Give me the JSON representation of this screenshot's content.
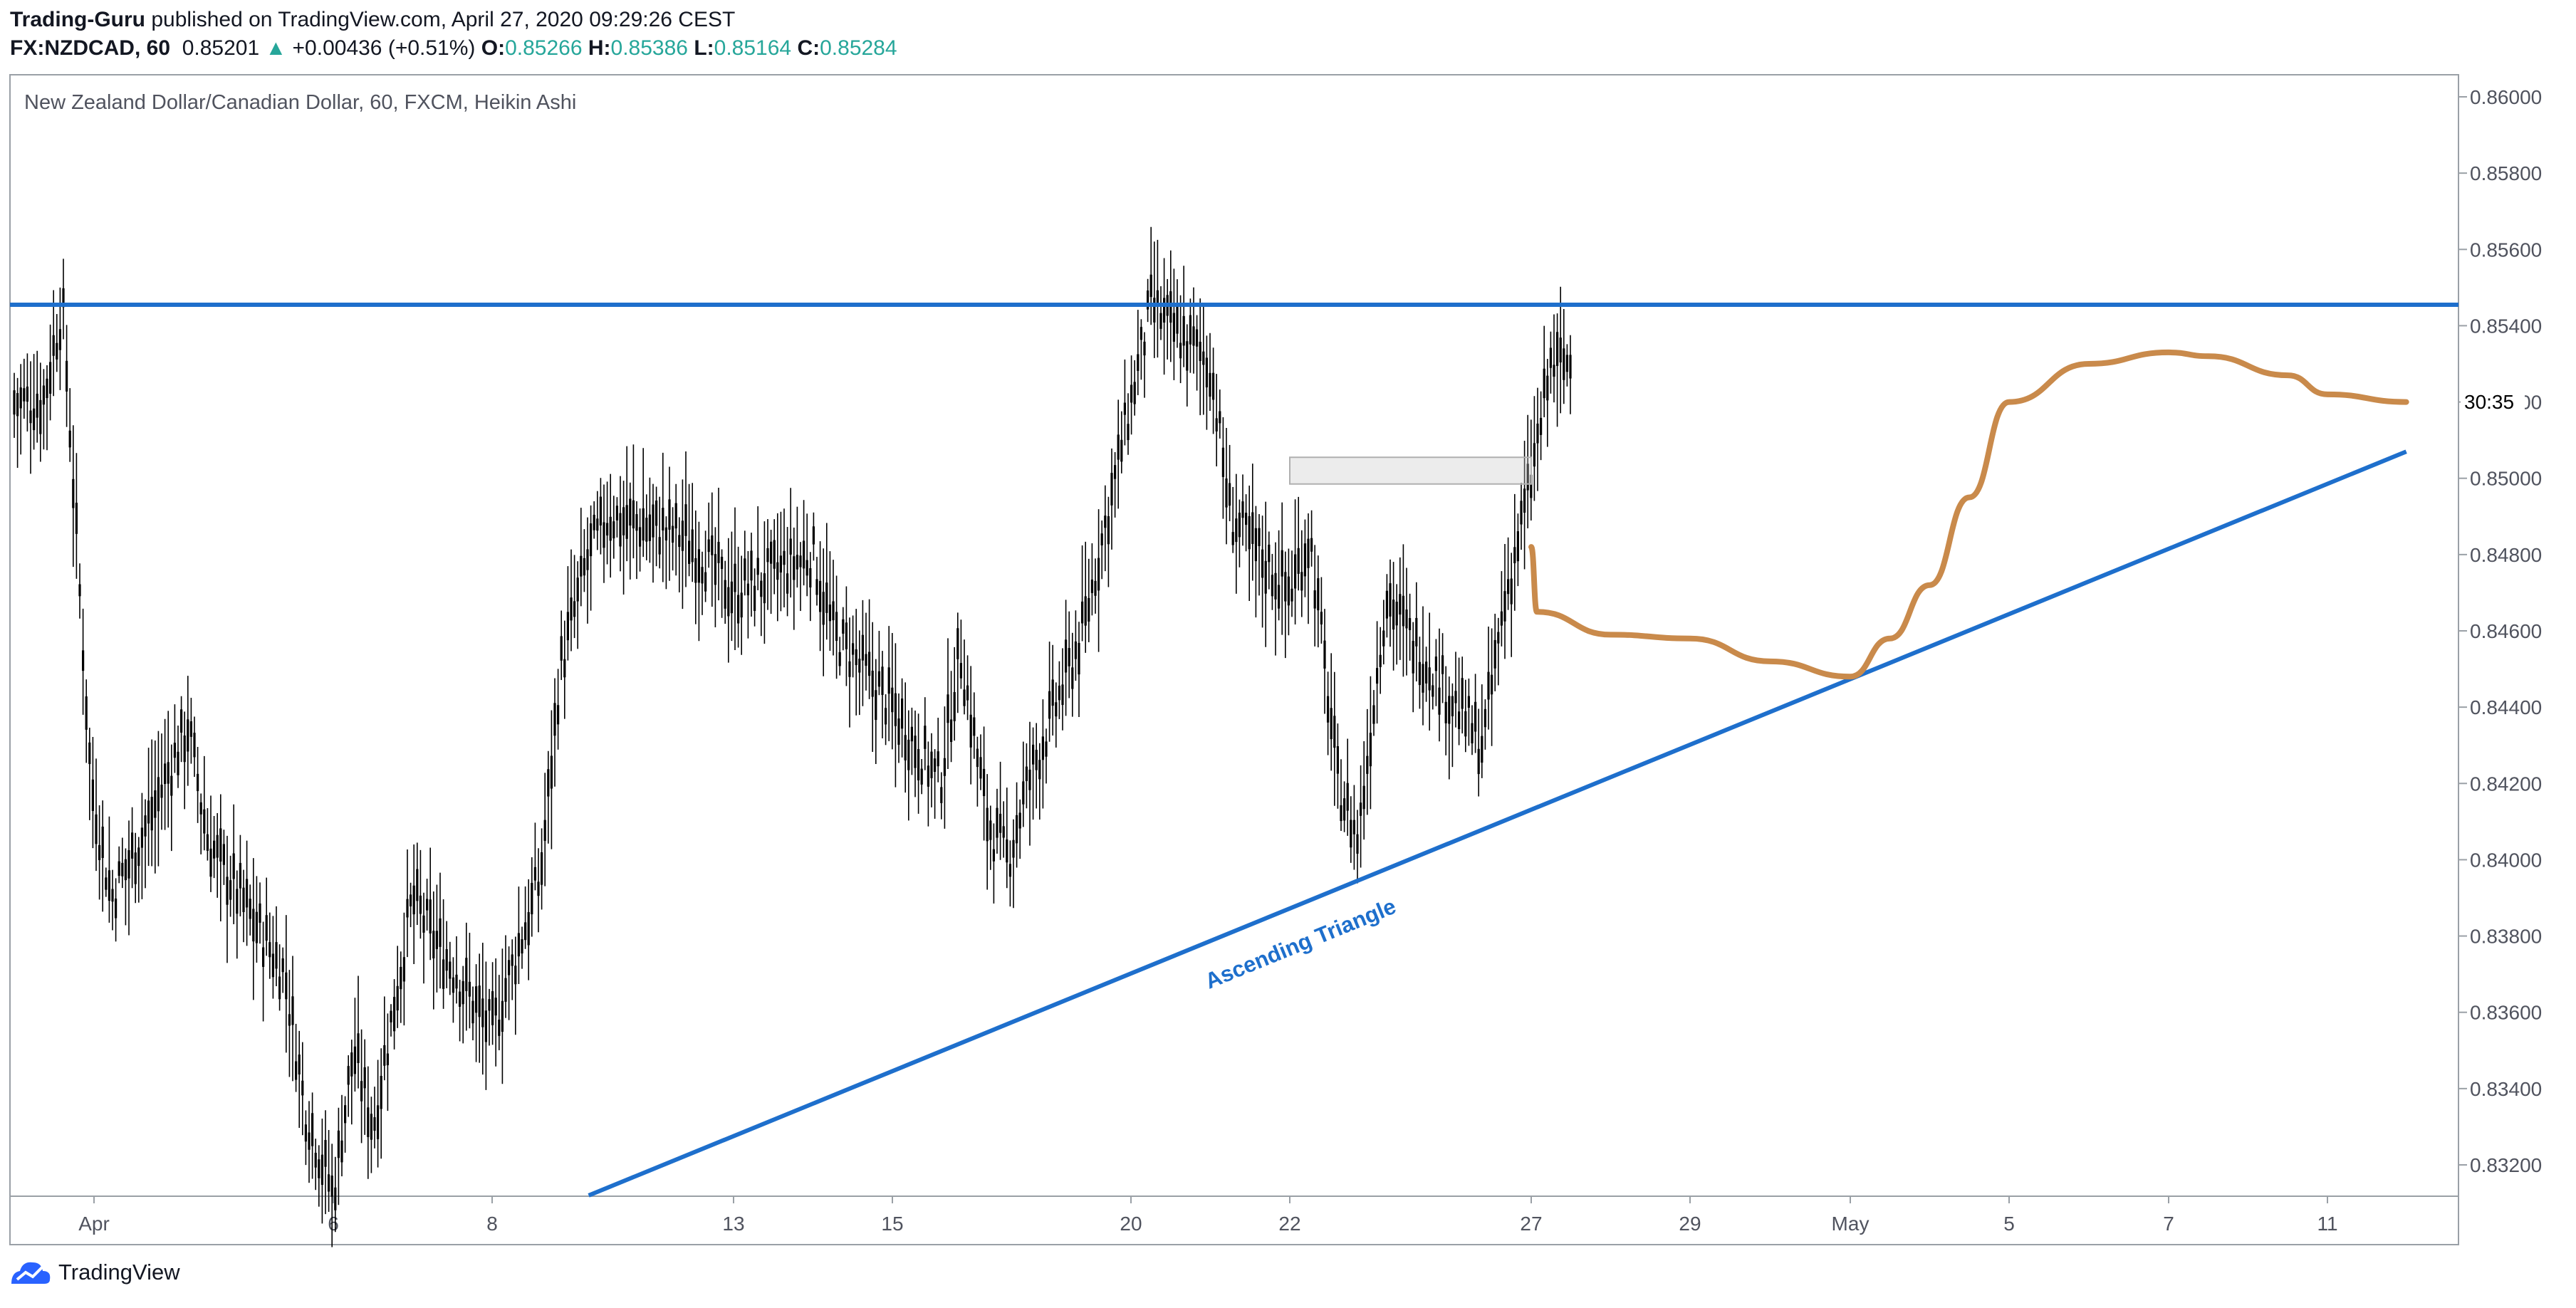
{
  "header": {
    "author": "Trading-Guru",
    "published_text": "published on TradingView.com, April 27, 2020 09:29:26 CEST",
    "symbol": "FX:NZDCAD, 60",
    "last_price": "0.85201",
    "change_arrow": "▲",
    "change": "+0.00436 (+0.51%)",
    "o_label": "O:",
    "o_value": "0.85266",
    "h_label": "H:",
    "h_value": "0.85386",
    "l_label": "L:",
    "l_value": "0.85164",
    "c_label": "C:",
    "c_value": "0.85284"
  },
  "footer": {
    "brand": "TradingView"
  },
  "colors": {
    "trendline": "#1e6fcc",
    "projection": "#c98a4b",
    "candle": "#000000",
    "positive": "#26a69a"
  },
  "chart_data": {
    "type": "candlestick",
    "chart_style": "Heikin Ashi",
    "title": "New Zealand Dollar/Canadian Dollar, 60, FXCM, Heikin Ashi",
    "x_ticks": [
      "Apr",
      "6",
      "8",
      "13",
      "15",
      "20",
      "22",
      "27",
      "29",
      "May",
      "5",
      "7",
      "11"
    ],
    "y_ticks": [
      "0.86000",
      "0.85800",
      "0.85600",
      "0.85400",
      "0.85200",
      "0.85000",
      "0.84800",
      "0.84600",
      "0.84400",
      "0.84200",
      "0.84000",
      "0.83800",
      "0.83600",
      "0.83400",
      "0.83200"
    ],
    "ylim": [
      0.8312,
      0.8605
    ],
    "countdown_label": "30:35",
    "countdown_price": 0.85201,
    "resistance_level": 0.85455,
    "support_trendline": {
      "from": {
        "date": "Apr 10",
        "price": 0.8312
      },
      "to": {
        "date": "May 12",
        "price": 0.8507
      }
    },
    "annotation": "Ascending Triangle",
    "consolidation_box": {
      "from": "Apr 22",
      "to": "Apr 27",
      "price_range": [
        0.84985,
        0.85055
      ]
    },
    "projection_path": [
      {
        "date": "Apr 27",
        "price": 0.8482
      },
      {
        "date": "Apr 27",
        "price": 0.8465
      },
      {
        "date": "Apr 28",
        "price": 0.8459
      },
      {
        "date": "Apr 29",
        "price": 0.8458
      },
      {
        "date": "Apr 30",
        "price": 0.8452
      },
      {
        "date": "May 1",
        "price": 0.8448
      },
      {
        "date": "May 2",
        "price": 0.8458
      },
      {
        "date": "May 3",
        "price": 0.8472
      },
      {
        "date": "May 4",
        "price": 0.8495
      },
      {
        "date": "May 5",
        "price": 0.852
      },
      {
        "date": "May 6",
        "price": 0.853
      },
      {
        "date": "May 7",
        "price": 0.8533
      },
      {
        "date": "May 8",
        "price": 0.8532
      },
      {
        "date": "May 10",
        "price": 0.8527
      },
      {
        "date": "May 11",
        "price": 0.8522
      },
      {
        "date": "May 12",
        "price": 0.852
      }
    ],
    "price_path": [
      {
        "date": "Mar 31",
        "price": 0.852
      },
      {
        "date": "Mar 31",
        "price": 0.8545
      },
      {
        "date": "Apr 1",
        "price": 0.842
      },
      {
        "date": "Apr 1",
        "price": 0.839
      },
      {
        "date": "Apr 2",
        "price": 0.8405
      },
      {
        "date": "Apr 3",
        "price": 0.8435
      },
      {
        "date": "Apr 3",
        "price": 0.8405
      },
      {
        "date": "Apr 5",
        "price": 0.837
      },
      {
        "date": "Apr 5",
        "price": 0.8335
      },
      {
        "date": "Apr 6",
        "price": 0.8312
      },
      {
        "date": "Apr 6",
        "price": 0.835
      },
      {
        "date": "Apr 6",
        "price": 0.833
      },
      {
        "date": "Apr 7",
        "price": 0.839
      },
      {
        "date": "Apr 7",
        "price": 0.838
      },
      {
        "date": "Apr 8",
        "price": 0.8355
      },
      {
        "date": "Apr 9",
        "price": 0.8395
      },
      {
        "date": "Apr 9",
        "price": 0.845
      },
      {
        "date": "Apr 10",
        "price": 0.848
      },
      {
        "date": "Apr 10",
        "price": 0.849
      },
      {
        "date": "Apr 12",
        "price": 0.8485
      },
      {
        "date": "Apr 13",
        "price": 0.847
      },
      {
        "date": "Apr 14",
        "price": 0.848
      },
      {
        "date": "Apr 14",
        "price": 0.846
      },
      {
        "date": "Apr 15",
        "price": 0.844
      },
      {
        "date": "Apr 16",
        "price": 0.842
      },
      {
        "date": "Apr 16",
        "price": 0.8455
      },
      {
        "date": "Apr 17",
        "price": 0.841
      },
      {
        "date": "Apr 17",
        "price": 0.84
      },
      {
        "date": "Apr 17",
        "price": 0.842
      },
      {
        "date": "Apr 19",
        "price": 0.846
      },
      {
        "date": "Apr 20",
        "price": 0.852
      },
      {
        "date": "Apr 20",
        "price": 0.8545
      },
      {
        "date": "Apr 21",
        "price": 0.853
      },
      {
        "date": "Apr 21",
        "price": 0.849
      },
      {
        "date": "Apr 22",
        "price": 0.847
      },
      {
        "date": "Apr 22",
        "price": 0.8485
      },
      {
        "date": "Apr 23",
        "price": 0.842
      },
      {
        "date": "Apr 23",
        "price": 0.8405
      },
      {
        "date": "Apr 24",
        "price": 0.847
      },
      {
        "date": "Apr 24",
        "price": 0.846
      },
      {
        "date": "Apr 26",
        "price": 0.843
      },
      {
        "date": "Apr 26",
        "price": 0.8465
      },
      {
        "date": "Apr 27",
        "price": 0.85
      },
      {
        "date": "Apr 27",
        "price": 0.853
      }
    ]
  }
}
